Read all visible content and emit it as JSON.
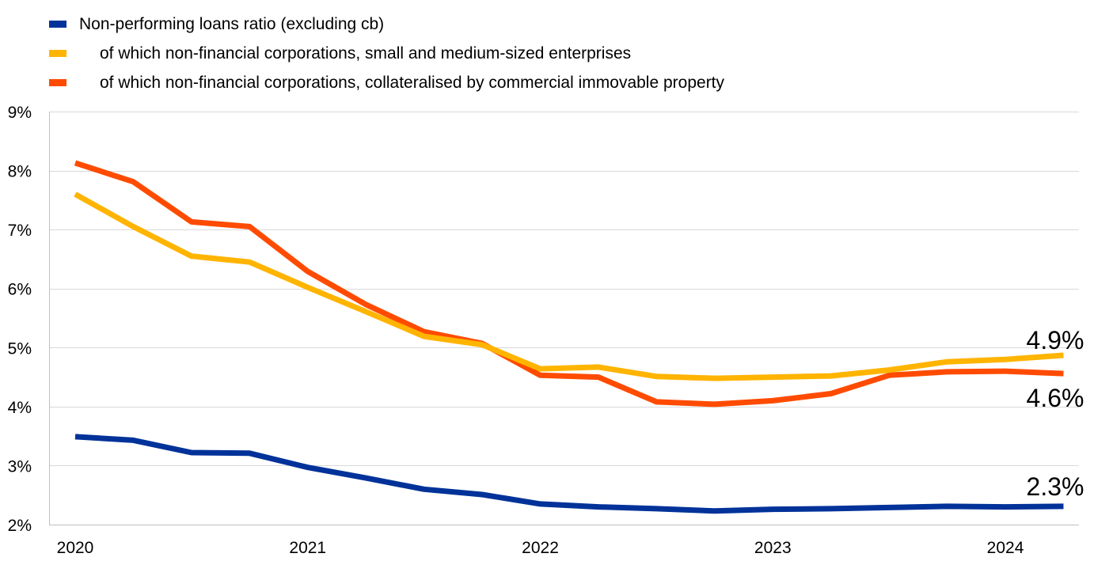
{
  "chart_data": {
    "type": "line",
    "title": "",
    "xlabel": "",
    "ylabel": "",
    "ylim": [
      2,
      9
    ],
    "y_ticks": [
      2,
      3,
      4,
      5,
      6,
      7,
      8,
      9
    ],
    "y_tick_labels": [
      "2%",
      "3%",
      "4%",
      "5%",
      "6%",
      "7%",
      "8%",
      "9%"
    ],
    "x_tick_labels": [
      "2020",
      "2021",
      "2022",
      "2023",
      "2024"
    ],
    "grid": "horizontal",
    "legend_position": "top-left",
    "x": [
      "2020-Q1",
      "2020-Q2",
      "2020-Q3",
      "2020-Q4",
      "2021-Q1",
      "2021-Q2",
      "2021-Q3",
      "2021-Q4",
      "2022-Q1",
      "2022-Q2",
      "2022-Q3",
      "2022-Q4",
      "2023-Q1",
      "2023-Q2",
      "2023-Q3",
      "2023-Q4",
      "2024-Q1",
      "2024-Q2"
    ],
    "series": [
      {
        "name": "Non-performing loans ratio (excluding cb)",
        "color": "#003299",
        "values": [
          3.49,
          3.43,
          3.22,
          3.21,
          2.97,
          2.79,
          2.6,
          2.51,
          2.35,
          2.3,
          2.27,
          2.23,
          2.26,
          2.27,
          2.29,
          2.31,
          2.3,
          2.31
        ],
        "end_label": "2.3%"
      },
      {
        "name": "of which non-financial corporations, small and medium-sized enterprises",
        "color": "#FFB400",
        "values": [
          7.6,
          7.05,
          6.55,
          6.45,
          6.02,
          5.61,
          5.19,
          5.05,
          4.64,
          4.67,
          4.51,
          4.48,
          4.5,
          4.52,
          4.62,
          4.76,
          4.8,
          4.87
        ],
        "end_label": "4.9%"
      },
      {
        "name": "of which non-financial corporations, collateralised by commercial immovable property",
        "color": "#FF4B00",
        "values": [
          8.13,
          7.81,
          7.13,
          7.05,
          6.29,
          5.73,
          5.27,
          5.07,
          4.53,
          4.5,
          4.08,
          4.04,
          4.1,
          4.22,
          4.53,
          4.59,
          4.6,
          4.56
        ],
        "end_label": "4.6%"
      }
    ]
  }
}
